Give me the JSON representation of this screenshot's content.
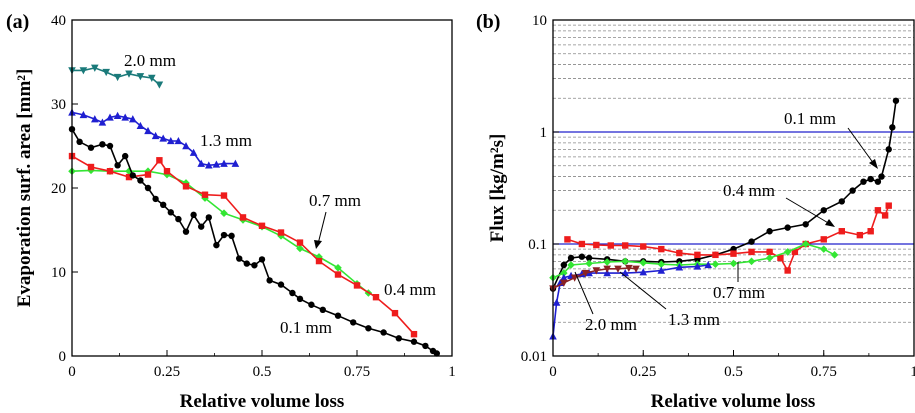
{
  "chart_data": [
    {
      "panel_label": "(a)",
      "type": "line",
      "xlabel": "Relative volume loss",
      "ylabel": "Evaporation surf. area [mm²]",
      "xlim": [
        0,
        1
      ],
      "ylim": [
        0,
        40
      ],
      "x_ticks": [
        0,
        0.25,
        0.5,
        0.75,
        1
      ],
      "x_tick_labels": [
        "0",
        "0.25",
        "0.5",
        "0.75",
        "1"
      ],
      "y_ticks": [
        0,
        10,
        20,
        30,
        40
      ],
      "y_tick_labels": [
        "0",
        "10",
        "20",
        "30",
        "40"
      ],
      "grid": false,
      "series": [
        {
          "name": "2.0 mm",
          "color": "#1a7a7a",
          "marker": "triangle-down",
          "x": [
            0.0,
            0.03,
            0.06,
            0.09,
            0.12,
            0.15,
            0.18,
            0.21,
            0.23
          ],
          "y": [
            34.0,
            34.0,
            34.3,
            33.8,
            33.2,
            33.6,
            33.3,
            33.1,
            32.3
          ]
        },
        {
          "name": "1.3 mm",
          "color": "#1f1fd1",
          "marker": "triangle-up",
          "x": [
            0.0,
            0.03,
            0.06,
            0.08,
            0.1,
            0.12,
            0.14,
            0.16,
            0.18,
            0.2,
            0.22,
            0.24,
            0.26,
            0.28,
            0.3,
            0.32,
            0.34,
            0.36,
            0.38,
            0.4,
            0.43
          ],
          "y": [
            29.0,
            28.7,
            28.2,
            27.8,
            28.4,
            28.6,
            28.4,
            28.2,
            27.4,
            26.8,
            26.2,
            25.9,
            25.6,
            25.6,
            25.0,
            24.2,
            22.9,
            22.7,
            22.8,
            22.9,
            22.9
          ]
        },
        {
          "name": "0.7 mm",
          "color": "#33e633",
          "marker": "diamond",
          "x": [
            0.0,
            0.05,
            0.1,
            0.15,
            0.2,
            0.25,
            0.3,
            0.35,
            0.4,
            0.45,
            0.5,
            0.55,
            0.6,
            0.65,
            0.7,
            0.75,
            0.78
          ],
          "y": [
            22.0,
            22.1,
            22.0,
            22.0,
            22.0,
            21.6,
            20.6,
            18.8,
            17.0,
            16.2,
            15.4,
            14.3,
            12.8,
            11.8,
            10.5,
            8.6,
            7.5
          ]
        },
        {
          "name": "0.4 mm",
          "color": "#ee1c1c",
          "marker": "square",
          "x": [
            0.0,
            0.05,
            0.1,
            0.15,
            0.2,
            0.23,
            0.25,
            0.3,
            0.35,
            0.4,
            0.45,
            0.5,
            0.55,
            0.6,
            0.65,
            0.7,
            0.75,
            0.8,
            0.85,
            0.9
          ],
          "y": [
            23.8,
            22.5,
            22.0,
            21.3,
            21.6,
            23.3,
            22.0,
            20.2,
            19.2,
            19.1,
            16.5,
            15.5,
            14.7,
            13.5,
            11.3,
            9.7,
            8.4,
            7.0,
            5.1,
            2.6
          ]
        },
        {
          "name": "0.1 mm",
          "color": "#000000",
          "marker": "circle",
          "x": [
            0.0,
            0.02,
            0.05,
            0.08,
            0.1,
            0.12,
            0.14,
            0.16,
            0.18,
            0.2,
            0.22,
            0.24,
            0.26,
            0.28,
            0.3,
            0.32,
            0.34,
            0.36,
            0.38,
            0.4,
            0.42,
            0.44,
            0.46,
            0.48,
            0.5,
            0.52,
            0.55,
            0.58,
            0.6,
            0.63,
            0.66,
            0.7,
            0.74,
            0.78,
            0.82,
            0.86,
            0.9,
            0.93,
            0.95,
            0.96
          ],
          "y": [
            27.0,
            25.5,
            24.8,
            25.2,
            25.0,
            22.7,
            23.8,
            21.5,
            20.9,
            20.0,
            18.7,
            18.0,
            17.1,
            16.3,
            14.8,
            16.8,
            15.4,
            16.5,
            13.2,
            14.4,
            14.3,
            11.6,
            11.0,
            10.8,
            11.5,
            9.0,
            8.5,
            7.5,
            6.8,
            6.1,
            5.5,
            4.8,
            4.0,
            3.3,
            2.8,
            2.1,
            1.7,
            1.2,
            0.6,
            0.3
          ]
        }
      ],
      "annotations": [
        "2.0 mm",
        "1.3 mm",
        "0.7 mm",
        "0.4 mm",
        "0.1 mm"
      ]
    },
    {
      "panel_label": "(b)",
      "type": "line",
      "xlabel": "Relative volume loss",
      "ylabel": "Flux [kg/m²s]",
      "yscale": "log",
      "xlim": [
        0,
        1
      ],
      "ylim": [
        0.01,
        10
      ],
      "x_ticks": [
        0,
        0.25,
        0.5,
        0.75,
        1
      ],
      "x_tick_labels": [
        "0",
        "0.25",
        "0.5",
        "0.75",
        "1"
      ],
      "y_ticks": [
        0.01,
        0.1,
        1,
        10
      ],
      "y_tick_labels": [
        "0.01",
        "0.1",
        "1",
        "10"
      ],
      "grid": "dashed minor gridlines, solid blue lines at 0.1 and 1",
      "series": [
        {
          "name": "0.1 mm",
          "color": "#000000",
          "marker": "circle",
          "x": [
            0.0,
            0.03,
            0.05,
            0.08,
            0.1,
            0.15,
            0.2,
            0.25,
            0.3,
            0.35,
            0.4,
            0.45,
            0.5,
            0.55,
            0.6,
            0.65,
            0.7,
            0.75,
            0.8,
            0.83,
            0.86,
            0.88,
            0.9,
            0.91,
            0.93,
            0.94,
            0.95
          ],
          "y": [
            0.04,
            0.065,
            0.075,
            0.077,
            0.075,
            0.073,
            0.07,
            0.07,
            0.069,
            0.07,
            0.073,
            0.08,
            0.09,
            0.105,
            0.13,
            0.14,
            0.15,
            0.2,
            0.24,
            0.3,
            0.36,
            0.38,
            0.36,
            0.4,
            0.7,
            1.1,
            1.9
          ]
        },
        {
          "name": "0.4 mm",
          "color": "#ee1c1c",
          "marker": "square",
          "x": [
            0.04,
            0.08,
            0.12,
            0.16,
            0.2,
            0.25,
            0.3,
            0.35,
            0.4,
            0.45,
            0.5,
            0.55,
            0.6,
            0.63,
            0.65,
            0.67,
            0.7,
            0.75,
            0.8,
            0.85,
            0.88,
            0.9,
            0.92,
            0.93
          ],
          "y": [
            0.11,
            0.1,
            0.098,
            0.097,
            0.097,
            0.095,
            0.09,
            0.083,
            0.08,
            0.08,
            0.082,
            0.085,
            0.085,
            0.075,
            0.058,
            0.085,
            0.1,
            0.11,
            0.13,
            0.12,
            0.13,
            0.2,
            0.18,
            0.22
          ]
        },
        {
          "name": "0.7 mm",
          "color": "#33e633",
          "marker": "diamond",
          "x": [
            0.0,
            0.03,
            0.05,
            0.1,
            0.15,
            0.2,
            0.25,
            0.3,
            0.35,
            0.4,
            0.45,
            0.5,
            0.55,
            0.6,
            0.65,
            0.7,
            0.75,
            0.78
          ],
          "y": [
            0.05,
            0.055,
            0.065,
            0.067,
            0.069,
            0.07,
            0.068,
            0.066,
            0.065,
            0.066,
            0.066,
            0.067,
            0.07,
            0.075,
            0.085,
            0.1,
            0.09,
            0.08
          ]
        },
        {
          "name": "1.3 mm",
          "color": "#1f1fd1",
          "marker": "triangle-up",
          "x": [
            0.0,
            0.01,
            0.02,
            0.03,
            0.05,
            0.08,
            0.1,
            0.15,
            0.2,
            0.25,
            0.3,
            0.35,
            0.4,
            0.43
          ],
          "y": [
            0.015,
            0.03,
            0.045,
            0.05,
            0.052,
            0.054,
            0.055,
            0.055,
            0.055,
            0.056,
            0.058,
            0.062,
            0.063,
            0.065
          ]
        },
        {
          "name": "2.0 mm",
          "color": "#8b2323",
          "marker": "triangle-down",
          "x": [
            0.0,
            0.03,
            0.06,
            0.09,
            0.12,
            0.15,
            0.18,
            0.21,
            0.23
          ],
          "y": [
            0.04,
            0.045,
            0.05,
            0.055,
            0.058,
            0.06,
            0.06,
            0.061,
            0.06
          ]
        }
      ],
      "annotations": [
        "0.1 mm",
        "0.4 mm",
        "0.7 mm",
        "2.0 mm",
        "1.3 mm"
      ]
    }
  ]
}
